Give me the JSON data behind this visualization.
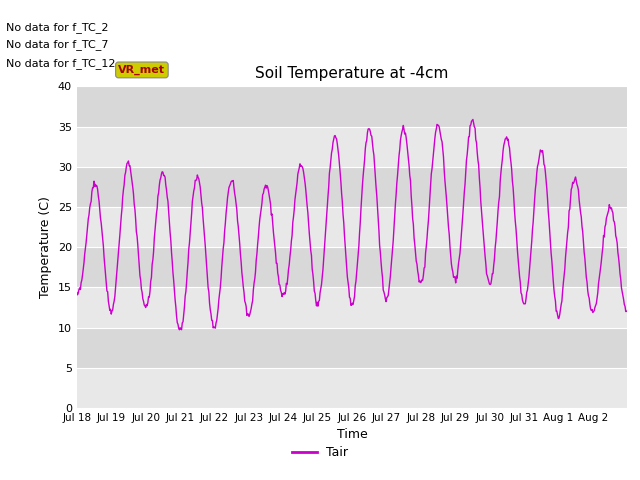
{
  "title": "Soil Temperature at -4cm",
  "xlabel": "Time",
  "ylabel": "Temperature (C)",
  "ylim": [
    0,
    40
  ],
  "line_color": "#cc00cc",
  "bg_color": "#e8e8e8",
  "bg_color_alt": "#d8d8d8",
  "annotations": [
    "No data for f_TC_2",
    "No data for f_TC_7",
    "No data for f_TC_12"
  ],
  "tooltip_label": "VR_met",
  "tooltip_color": "#cccc00",
  "tooltip_text_color": "#aa0000",
  "legend_label": "Tair",
  "xtick_labels": [
    "Jul 18",
    "Jul 19",
    "Jul 20",
    "Jul 21",
    "Jul 22",
    "Jul 23",
    "Jul 24",
    "Jul 25",
    "Jul 26",
    "Jul 27",
    "Jul 28",
    "Jul 29",
    "Jul 30",
    "Jul 31",
    "Aug 1",
    "Aug 2"
  ],
  "ytick_values": [
    0,
    5,
    10,
    15,
    20,
    25,
    30,
    35,
    40
  ],
  "num_days": 16,
  "periods_per_day": 48,
  "day_mins": [
    14,
    12,
    12.5,
    9.5,
    10,
    11.5,
    14,
    13,
    13,
    13.5,
    15.5,
    16,
    15.5,
    13,
    11.5,
    12
  ],
  "day_maxs": [
    24,
    31.5,
    29.5,
    29,
    28.5,
    28,
    27.5,
    33,
    34.5,
    35,
    34.5,
    36,
    35.5,
    32,
    32,
    25
  ]
}
